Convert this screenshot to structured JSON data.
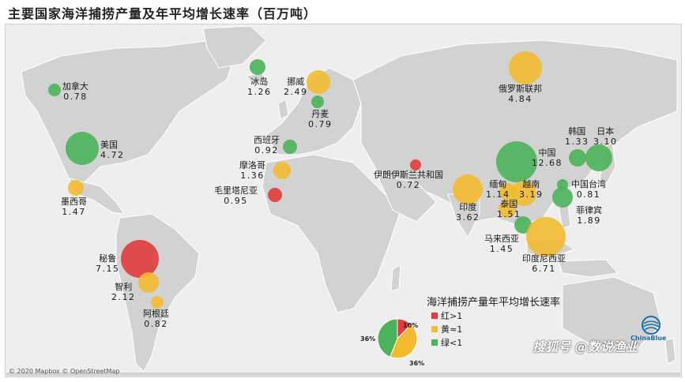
{
  "title": "主要国家海洋捕捞产量及年平均增长速率（百万吨）",
  "attribution": "© 2020 Mapbox © OpenStreetMap",
  "colors": {
    "red": "#e03c3c",
    "yellow": "#f2bb30",
    "green": "#4bb35a",
    "land": "#d2d2d2",
    "water": "#eeeeee"
  },
  "countries": [
    {
      "name": "加拿大",
      "value": "0.78",
      "color": "green"
    },
    {
      "name": "美国",
      "value": "4.72",
      "color": "green"
    },
    {
      "name": "墨西哥",
      "value": "1.47",
      "color": "yellow"
    },
    {
      "name": "秘鲁",
      "value": "7.15",
      "color": "red"
    },
    {
      "name": "智利",
      "value": "2.12",
      "color": "yellow"
    },
    {
      "name": "阿根廷",
      "value": "0.82",
      "color": "yellow"
    },
    {
      "name": "冰岛",
      "value": "1.26",
      "color": "green"
    },
    {
      "name": "挪威",
      "value": "2.49",
      "color": "yellow"
    },
    {
      "name": "丹麦",
      "value": "0.79",
      "color": "green"
    },
    {
      "name": "西班牙",
      "value": "0.92",
      "color": "green"
    },
    {
      "name": "摩洛哥",
      "value": "1.36",
      "color": "yellow"
    },
    {
      "name": "毛里塔尼亚",
      "value": "0.95",
      "color": "red"
    },
    {
      "name": "伊朗伊斯兰共和国",
      "value": "0.72",
      "color": "red"
    },
    {
      "name": "俄罗斯联邦",
      "value": "4.84",
      "color": "yellow"
    },
    {
      "name": "中国",
      "value": "12.68",
      "color": "green"
    },
    {
      "name": "韩国",
      "value": "1.33",
      "color": "green"
    },
    {
      "name": "日本",
      "value": "3.10",
      "color": "green"
    },
    {
      "name": "中国台湾",
      "value": "0.81",
      "color": "green"
    },
    {
      "name": "菲律宾",
      "value": "1.89",
      "color": "green"
    },
    {
      "name": "印度",
      "value": "3.62",
      "color": "yellow"
    },
    {
      "name": "缅甸",
      "value": "1.14",
      "color": "yellow"
    },
    {
      "name": "越南",
      "value": "3.19",
      "color": "yellow"
    },
    {
      "name": "泰国",
      "value": "1.51",
      "color": "yellow"
    },
    {
      "name": "马来西亚",
      "value": "1.45",
      "color": "green"
    },
    {
      "name": "印度尼西亚",
      "value": "6.71",
      "color": "yellow"
    }
  ],
  "legend": {
    "title": "海洋捕捞产量年平均增长速率",
    "items": [
      "红>1",
      "黄≈1",
      "绿<1"
    ],
    "pie": [
      {
        "label": "10%",
        "value": 10,
        "color": "red"
      },
      {
        "label": "36%",
        "value": 36,
        "color": "yellow"
      },
      {
        "label": "36%",
        "value": 36,
        "color": "green"
      }
    ]
  },
  "logo_text": "ChinaBlue",
  "watermark": "搜狐号 @数说渔业"
}
